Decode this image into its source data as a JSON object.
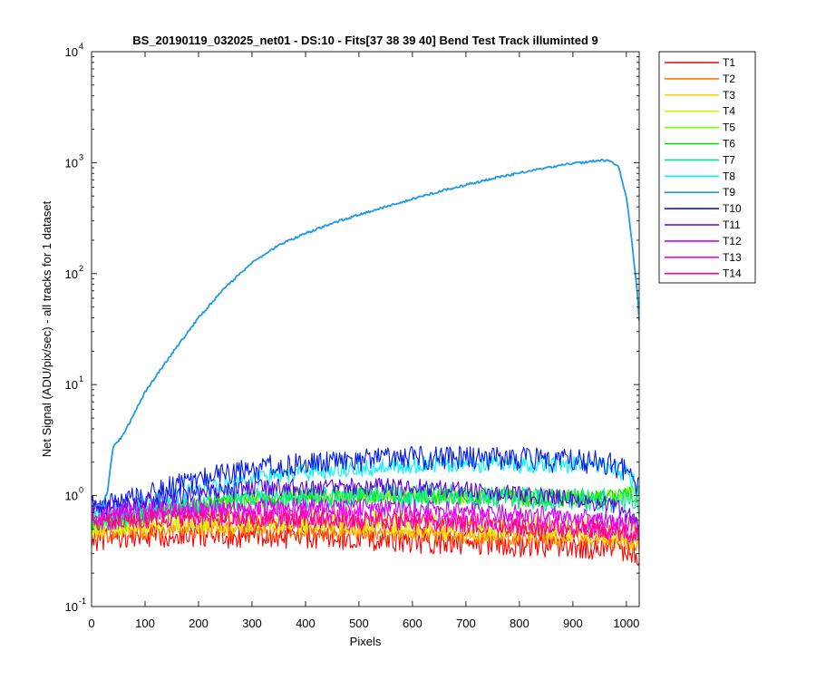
{
  "chart_data": {
    "type": "line",
    "title": "BS_20190119_032025_net01 - DS:10 - Fits[37  38  39  40]    Bend Test        Track illuminted 9",
    "xlabel": "Pixels",
    "ylabel": "Net Signal (ADU/pix/sec) - all tracks for 1 dataset",
    "xlim": [
      0,
      1024
    ],
    "ylim": [
      0.1,
      10000
    ],
    "yscale": "log",
    "x_ticks": [
      0,
      100,
      200,
      300,
      400,
      500,
      600,
      700,
      800,
      900,
      1000
    ],
    "y_ticks": [
      {
        "value": 0.1,
        "mantissa": "10",
        "exp": "-1"
      },
      {
        "value": 1,
        "mantissa": "10",
        "exp": "0"
      },
      {
        "value": 10,
        "mantissa": "10",
        "exp": "1"
      },
      {
        "value": 100,
        "mantissa": "10",
        "exp": "2"
      },
      {
        "value": 1000,
        "mantissa": "10",
        "exp": "3"
      },
      {
        "value": 10000,
        "mantissa": "10",
        "exp": "4"
      }
    ],
    "grid": false,
    "legend_position": "outside-top-right",
    "x": [
      0,
      20,
      30,
      40,
      60,
      80,
      100,
      150,
      200,
      250,
      300,
      350,
      400,
      450,
      500,
      550,
      600,
      650,
      700,
      750,
      800,
      850,
      900,
      950,
      970,
      985,
      1000,
      1010,
      1020,
      1024
    ],
    "series": [
      {
        "name": "T1",
        "color": "#ff0000",
        "values": [
          0.4,
          0.41,
          0.41,
          0.42,
          0.42,
          0.43,
          0.43,
          0.44,
          0.44,
          0.43,
          0.43,
          0.42,
          0.42,
          0.41,
          0.41,
          0.4,
          0.39,
          0.38,
          0.37,
          0.37,
          0.36,
          0.36,
          0.35,
          0.34,
          0.34,
          0.33,
          0.32,
          0.32,
          0.3,
          0.3
        ]
      },
      {
        "name": "T2",
        "color": "#ff7400",
        "values": [
          0.45,
          0.46,
          0.46,
          0.47,
          0.47,
          0.48,
          0.48,
          0.49,
          0.5,
          0.49,
          0.49,
          0.48,
          0.48,
          0.47,
          0.47,
          0.46,
          0.45,
          0.44,
          0.43,
          0.42,
          0.41,
          0.41,
          0.4,
          0.39,
          0.38,
          0.38,
          0.37,
          0.36,
          0.35,
          0.35
        ]
      },
      {
        "name": "T3",
        "color": "#ffd300",
        "values": [
          0.48,
          0.49,
          0.49,
          0.5,
          0.51,
          0.51,
          0.52,
          0.53,
          0.54,
          0.54,
          0.54,
          0.53,
          0.53,
          0.52,
          0.51,
          0.5,
          0.49,
          0.48,
          0.47,
          0.46,
          0.45,
          0.44,
          0.44,
          0.43,
          0.42,
          0.42,
          0.41,
          0.4,
          0.39,
          0.39
        ]
      },
      {
        "name": "T4",
        "color": "#c8ff00",
        "values": [
          0.52,
          0.53,
          0.54,
          0.55,
          0.56,
          0.57,
          0.58,
          0.6,
          0.61,
          0.62,
          0.62,
          0.62,
          0.61,
          0.61,
          0.6,
          0.59,
          0.58,
          0.57,
          0.56,
          0.55,
          0.54,
          0.53,
          0.52,
          0.51,
          0.51,
          0.5,
          0.5,
          0.49,
          0.48,
          0.48
        ]
      },
      {
        "name": "T5",
        "color": "#6bff00",
        "values": [
          0.56,
          0.57,
          0.58,
          0.59,
          0.61,
          0.64,
          0.67,
          0.73,
          0.8,
          0.86,
          0.91,
          0.94,
          0.97,
          0.98,
          0.99,
          0.99,
          0.99,
          0.98,
          0.97,
          0.96,
          0.95,
          0.94,
          0.94,
          0.95,
          0.96,
          0.97,
          1.0,
          1.02,
          1.04,
          1.05
        ]
      },
      {
        "name": "T6",
        "color": "#00e000",
        "values": [
          0.58,
          0.59,
          0.6,
          0.61,
          0.63,
          0.66,
          0.69,
          0.75,
          0.81,
          0.87,
          0.92,
          0.95,
          0.98,
          0.99,
          1.0,
          1.0,
          1.0,
          0.99,
          0.98,
          0.97,
          0.96,
          0.95,
          0.95,
          0.96,
          0.97,
          0.98,
          1.0,
          1.01,
          1.03,
          1.03
        ]
      },
      {
        "name": "T7",
        "color": "#00e8a0",
        "values": [
          0.6,
          0.61,
          0.62,
          0.63,
          0.65,
          0.68,
          0.71,
          0.77,
          0.83,
          0.89,
          0.93,
          0.96,
          0.98,
          0.99,
          1.0,
          1.0,
          0.99,
          0.98,
          0.97,
          0.96,
          0.95,
          0.94,
          0.93,
          0.92,
          0.91,
          0.9,
          0.88,
          0.86,
          0.82,
          0.8
        ]
      },
      {
        "name": "T8",
        "color": "#00f5ff",
        "values": [
          0.7,
          0.71,
          0.72,
          0.73,
          0.76,
          0.8,
          0.85,
          0.98,
          1.12,
          1.26,
          1.4,
          1.52,
          1.62,
          1.7,
          1.77,
          1.82,
          1.86,
          1.89,
          1.91,
          1.92,
          1.92,
          1.91,
          1.89,
          1.84,
          1.78,
          1.7,
          1.55,
          1.4,
          1.2,
          1.15
        ]
      },
      {
        "name": "T9",
        "color": "#1f9ae6",
        "values": [
          0.8,
          0.82,
          1.1,
          2.7,
          3.6,
          5.5,
          8.6,
          19.0,
          40.0,
          75.0,
          125.0,
          180.0,
          230.0,
          285.0,
          340.0,
          400.0,
          470.0,
          550.0,
          630.0,
          720.0,
          810.0,
          900.0,
          980.0,
          1050.0,
          1040.0,
          920.0,
          500.0,
          200.0,
          70.0,
          38.0
        ]
      },
      {
        "name": "T10",
        "color": "#0019f0",
        "values": [
          0.78,
          0.79,
          0.8,
          0.82,
          0.86,
          0.92,
          0.98,
          1.18,
          1.38,
          1.56,
          1.72,
          1.86,
          1.96,
          2.04,
          2.1,
          2.14,
          2.16,
          2.16,
          2.15,
          2.13,
          2.11,
          2.08,
          2.04,
          1.97,
          1.9,
          1.82,
          1.65,
          1.48,
          1.25,
          1.18
        ]
      },
      {
        "name": "T11",
        "color": "#5b00e6",
        "values": [
          0.75,
          0.76,
          0.77,
          0.78,
          0.8,
          0.83,
          0.87,
          0.95,
          1.03,
          1.1,
          1.15,
          1.18,
          1.2,
          1.21,
          1.21,
          1.2,
          1.18,
          1.15,
          1.12,
          1.08,
          1.03,
          0.98,
          0.92,
          0.85,
          0.8,
          0.76,
          0.7,
          0.66,
          0.6,
          0.58
        ]
      },
      {
        "name": "T12",
        "color": "#c800ff",
        "values": [
          0.68,
          0.69,
          0.69,
          0.7,
          0.71,
          0.72,
          0.73,
          0.75,
          0.77,
          0.78,
          0.79,
          0.8,
          0.8,
          0.8,
          0.79,
          0.78,
          0.77,
          0.75,
          0.73,
          0.71,
          0.69,
          0.67,
          0.65,
          0.62,
          0.6,
          0.59,
          0.57,
          0.55,
          0.52,
          0.51
        ]
      },
      {
        "name": "T13",
        "color": "#ff00e6",
        "values": [
          0.62,
          0.63,
          0.63,
          0.64,
          0.65,
          0.65,
          0.66,
          0.67,
          0.68,
          0.68,
          0.68,
          0.67,
          0.67,
          0.66,
          0.65,
          0.64,
          0.63,
          0.61,
          0.6,
          0.58,
          0.57,
          0.55,
          0.54,
          0.52,
          0.51,
          0.5,
          0.49,
          0.48,
          0.46,
          0.45
        ]
      },
      {
        "name": "T14",
        "color": "#ff0080",
        "values": [
          0.58,
          0.58,
          0.59,
          0.59,
          0.6,
          0.6,
          0.61,
          0.62,
          0.62,
          0.62,
          0.62,
          0.61,
          0.61,
          0.6,
          0.59,
          0.58,
          0.57,
          0.56,
          0.55,
          0.53,
          0.52,
          0.51,
          0.5,
          0.49,
          0.48,
          0.47,
          0.46,
          0.45,
          0.44,
          0.43
        ]
      }
    ]
  }
}
